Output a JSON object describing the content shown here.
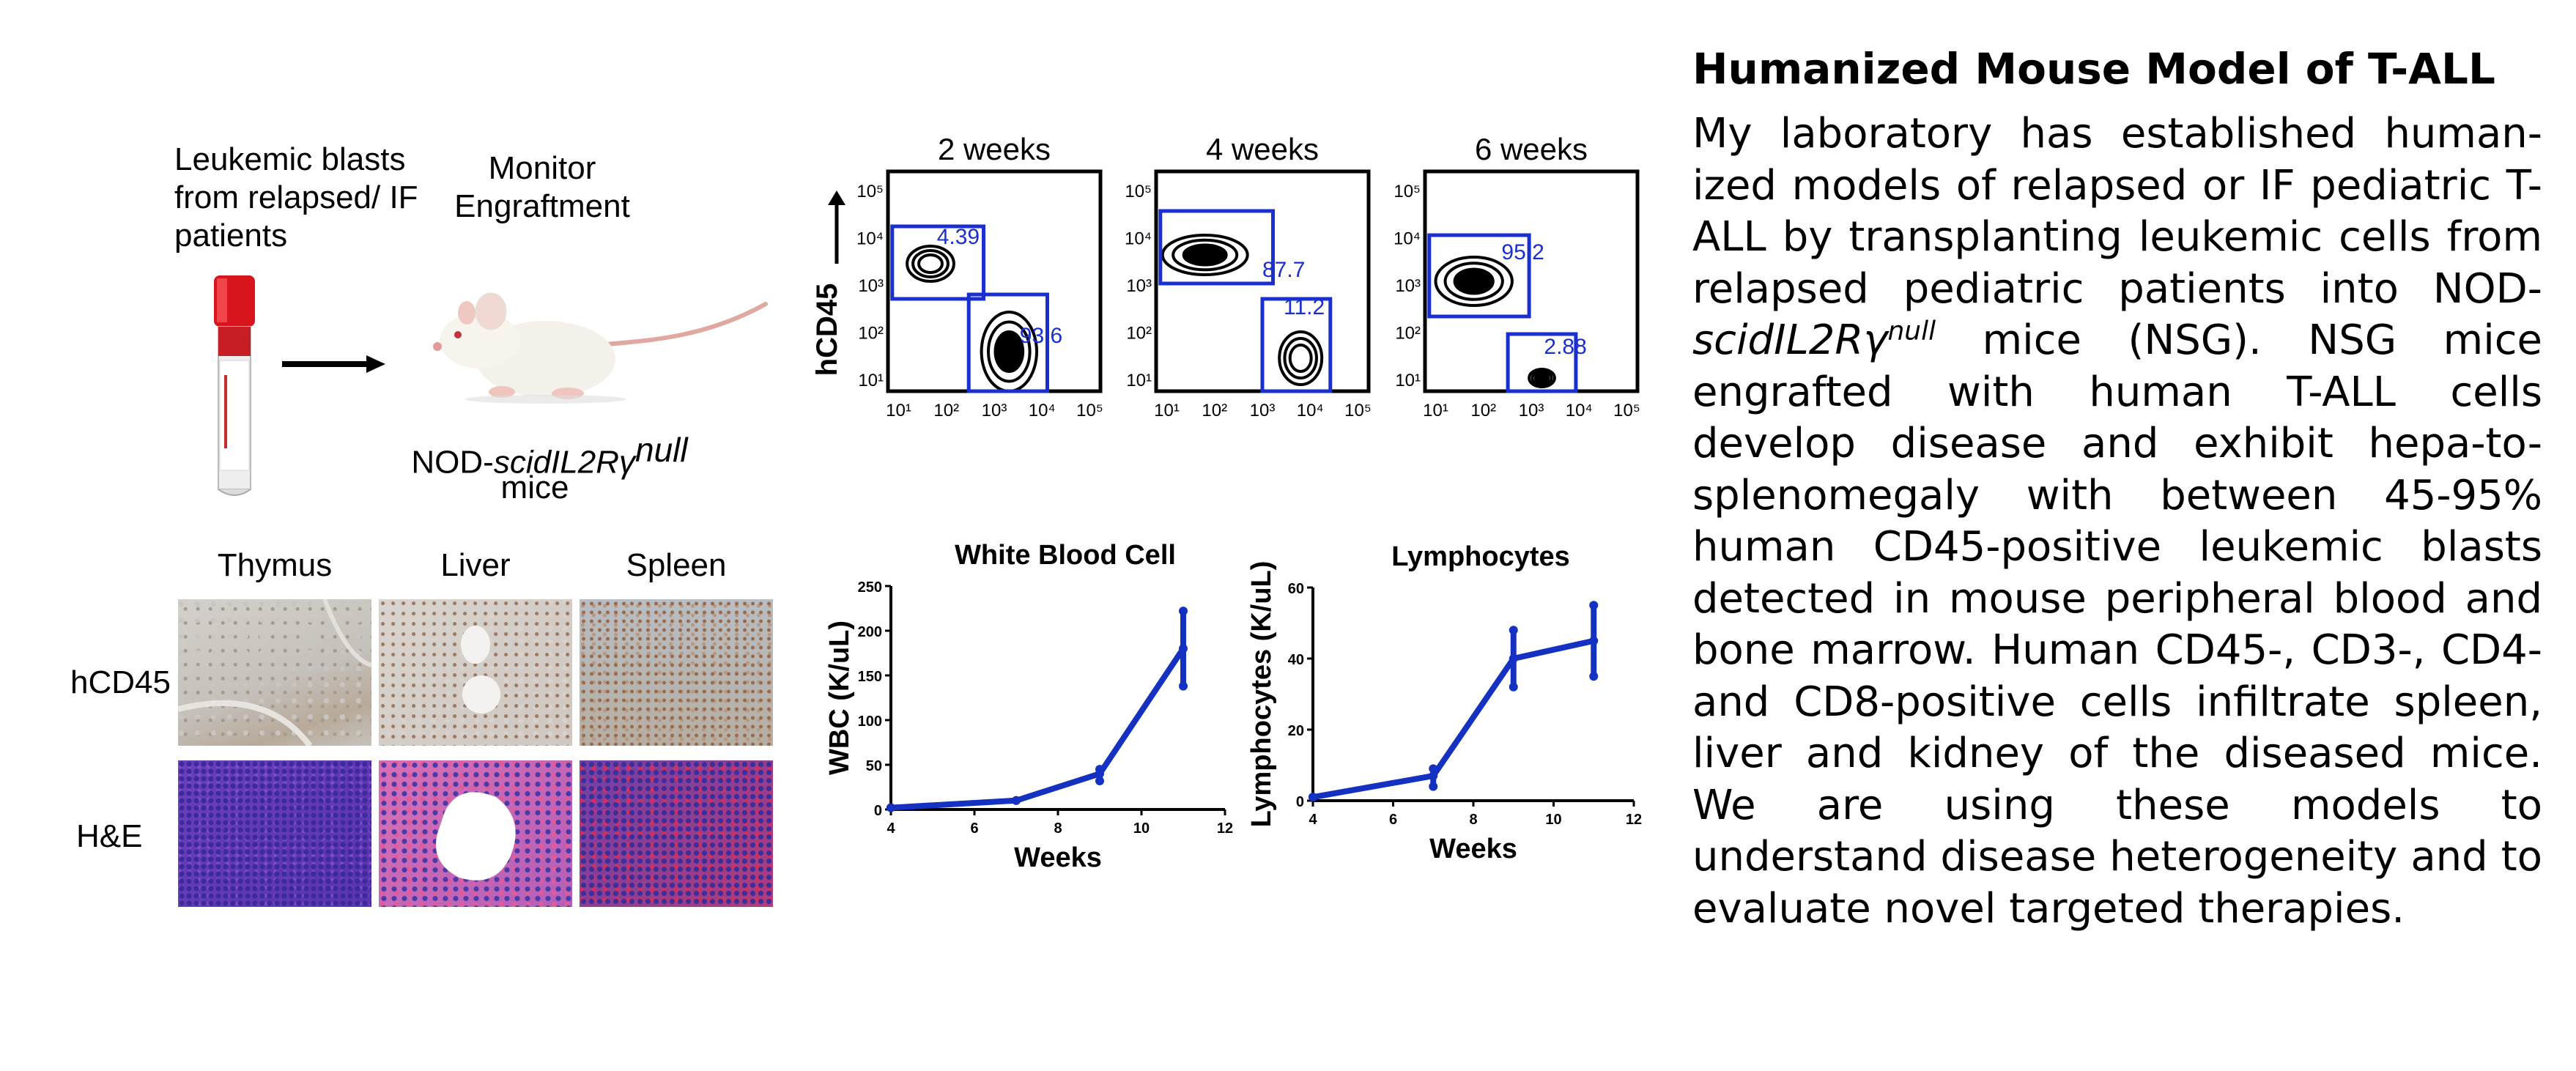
{
  "schematic": {
    "blasts_label": "Leukemic blasts from relapsed/ IF patients",
    "monitor_label": "Monitor Engraftment",
    "mouse_strain_prefix": "NOD-",
    "mouse_strain_italic": "scidIL2Rγ",
    "mouse_strain_superscript": "null",
    "mouse_strain_suffix": "mice"
  },
  "histology": {
    "columns": [
      "Thymus",
      "Liver",
      "Spleen"
    ],
    "rows": [
      "hCD45",
      "H&E"
    ]
  },
  "flow": {
    "ylabel": "hCD45",
    "tick_labels": [
      "10¹",
      "10²",
      "10³",
      "10⁴",
      "10⁵"
    ],
    "panels": [
      {
        "title": "2 weeks",
        "gate_top": "4.39",
        "gate_bottom": "93.6"
      },
      {
        "title": "4 weeks",
        "gate_top": "87.7",
        "gate_bottom": "11.2"
      },
      {
        "title": "6 weeks",
        "gate_top": "95.2",
        "gate_bottom": "2.88"
      }
    ]
  },
  "chart_data": [
    {
      "type": "line",
      "title": "White Blood Cell",
      "xlabel": "Weeks",
      "ylabel": "WBC (K/uL)",
      "xlim": [
        4,
        12
      ],
      "ylim": [
        0,
        250
      ],
      "xticks": [
        4,
        6,
        8,
        10,
        12
      ],
      "yticks": [
        0,
        50,
        100,
        150,
        200,
        250
      ],
      "x": [
        4,
        7,
        9,
        11
      ],
      "y": [
        2,
        10,
        40,
        180
      ],
      "err_low": [
        2,
        10,
        32,
        138
      ],
      "err_high": [
        2,
        10,
        45,
        222
      ],
      "color": "#1431c2"
    },
    {
      "type": "line",
      "title": "Lymphocytes",
      "xlabel": "Weeks",
      "ylabel": "Lymphocytes (K/uL)",
      "xlim": [
        4,
        12
      ],
      "ylim": [
        0,
        60
      ],
      "xticks": [
        4,
        6,
        8,
        10,
        12
      ],
      "yticks": [
        0,
        20,
        40,
        60
      ],
      "x": [
        4,
        7,
        9,
        11
      ],
      "y": [
        1,
        7,
        40,
        45
      ],
      "err_low": [
        1,
        4,
        32,
        35
      ],
      "err_high": [
        1,
        9,
        48,
        55
      ],
      "color": "#1431c2"
    }
  ],
  "text_panel": {
    "title": "Humanized Mouse Model of T-ALL",
    "body_part1": "My laboratory has established human-ized models of relapsed or IF pediatric T-ALL by transplanting leukemic cells from relapsed pediatric patients into NOD-",
    "body_italic": "scidIL2Rγ",
    "body_sup": "null",
    "body_part2": " mice (NSG). NSG mice engrafted with human T-ALL cells develop disease and exhibit hepa-to-splenomegaly with between 45-95% human CD45-positive leukemic blasts detected in mouse peripheral blood and bone marrow. Human CD45-, CD3-, CD4- and CD8-positive cells infiltrate spleen, liver and kidney of the diseased mice. We are using these models to understand disease heterogeneity and to evaluate novel targeted therapies."
  }
}
